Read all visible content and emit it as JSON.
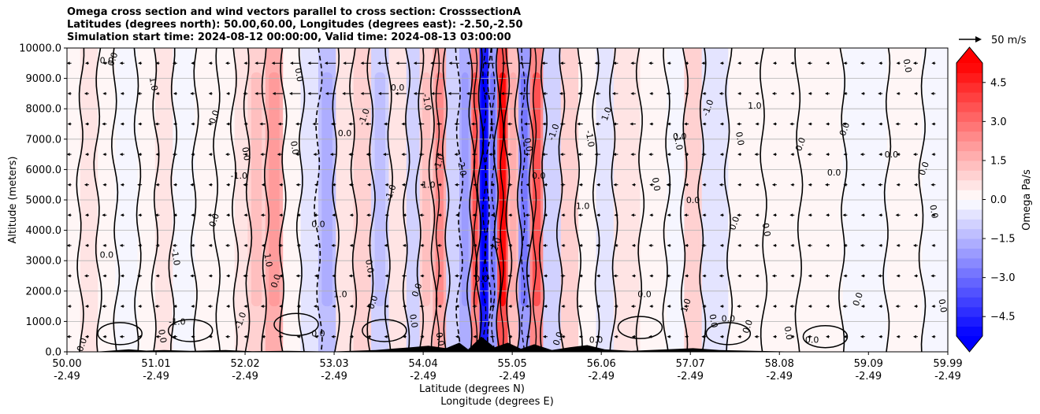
{
  "chart_data": {
    "type": "heatmap",
    "title_lines": [
      "Omega cross section and wind vectors parallel to cross section: CrosssectionA",
      "Latitudes (degrees north): 50.00,60.00, Longitudes (degrees east): -2.50,-2.50",
      "Simulation start time: 2024-08-12 00:00:00, Valid time: 2024-08-13 03:00:00"
    ],
    "ylabel": "Altitude (meters)",
    "xlabel_lines": [
      "Latitude (degrees N)",
      "Longitude (degrees E)"
    ],
    "ylim": [
      0,
      10000
    ],
    "xlim": [
      50.0,
      59.99
    ],
    "y_ticks": [
      0,
      1000,
      2000,
      3000,
      4000,
      5000,
      6000,
      7000,
      8000,
      9000,
      10000
    ],
    "y_tick_labels": [
      "0.0",
      "1000.0",
      "2000.0",
      "3000.0",
      "4000.0",
      "5000.0",
      "6000.0",
      "7000.0",
      "8000.0",
      "9000.0",
      "10000.0"
    ],
    "x_ticks": [
      50.0,
      51.01,
      52.02,
      53.03,
      54.04,
      55.05,
      56.06,
      57.07,
      58.08,
      59.09,
      59.99
    ],
    "x_tick_lat_labels": [
      "50.00",
      "51.01",
      "52.02",
      "53.03",
      "54.04",
      "55.05",
      "56.06",
      "57.07",
      "58.08",
      "59.09",
      "59.99"
    ],
    "x_tick_lon_labels": [
      "-2.49",
      "-2.49",
      "-2.49",
      "-2.49",
      "-2.49",
      "-2.49",
      "-2.49",
      "-2.49",
      "-2.49",
      "-2.49",
      "-2.49"
    ],
    "grid": true,
    "colorbar": {
      "label": "Omega Pa/s",
      "range": [
        -5.25,
        5.25
      ],
      "tick_values": [
        4.5,
        3.0,
        1.5,
        0.0,
        -1.5,
        -3.0,
        -4.5
      ],
      "tick_labels": [
        "4.5",
        "3.0",
        "1.5",
        "0.0",
        "−1.5",
        "−3.0",
        "−4.5"
      ],
      "extend": "both",
      "colormap": "bwr"
    },
    "vector_key": {
      "label": "50 m/s",
      "speed": 50
    },
    "omega_bands": [
      {
        "lat": 50.0,
        "omega": 0.1
      },
      {
        "lat": 50.15,
        "omega": 0.4
      },
      {
        "lat": 50.35,
        "omega": 0.1
      },
      {
        "lat": 50.55,
        "omega": -0.2
      },
      {
        "lat": 50.8,
        "omega": 0.2
      },
      {
        "lat": 51.0,
        "omega": 0.5
      },
      {
        "lat": 51.2,
        "omega": -0.3
      },
      {
        "lat": 51.45,
        "omega": 0.3
      },
      {
        "lat": 51.7,
        "omega": 0.1
      },
      {
        "lat": 51.9,
        "omega": 0.6
      },
      {
        "lat": 52.05,
        "omega": 1.0
      },
      {
        "lat": 52.25,
        "omega": 1.5
      },
      {
        "lat": 52.45,
        "omega": 0.3
      },
      {
        "lat": 52.65,
        "omega": -0.7
      },
      {
        "lat": 52.85,
        "omega": -1.2
      },
      {
        "lat": 53.05,
        "omega": 0.4
      },
      {
        "lat": 53.25,
        "omega": 0.8
      },
      {
        "lat": 53.45,
        "omega": -1.0
      },
      {
        "lat": 53.65,
        "omega": 0.5
      },
      {
        "lat": 53.85,
        "omega": -0.8
      },
      {
        "lat": 54.0,
        "omega": 1.0
      },
      {
        "lat": 54.15,
        "omega": 1.8
      },
      {
        "lat": 54.3,
        "omega": -0.8
      },
      {
        "lat": 54.45,
        "omega": -1.5
      },
      {
        "lat": 54.58,
        "omega": 2.5
      },
      {
        "lat": 54.68,
        "omega": -4.5
      },
      {
        "lat": 54.78,
        "omega": -2.0
      },
      {
        "lat": 54.88,
        "omega": 3.5
      },
      {
        "lat": 55.0,
        "omega": 1.2
      },
      {
        "lat": 55.12,
        "omega": -2.0
      },
      {
        "lat": 55.25,
        "omega": 2.5
      },
      {
        "lat": 55.4,
        "omega": -0.8
      },
      {
        "lat": 55.6,
        "omega": 0.8
      },
      {
        "lat": 55.8,
        "omega": 0.3
      },
      {
        "lat": 56.0,
        "omega": -0.5
      },
      {
        "lat": 56.2,
        "omega": 0.4
      },
      {
        "lat": 56.5,
        "omega": 0.2
      },
      {
        "lat": 56.8,
        "omega": -0.3
      },
      {
        "lat": 57.0,
        "omega": 0.8
      },
      {
        "lat": 57.2,
        "omega": -0.6
      },
      {
        "lat": 57.5,
        "omega": 0.3
      },
      {
        "lat": 57.9,
        "omega": 0.1
      },
      {
        "lat": 58.3,
        "omega": 0.2
      },
      {
        "lat": 58.8,
        "omega": -0.1
      },
      {
        "lat": 59.3,
        "omega": 0.1
      },
      {
        "lat": 59.7,
        "omega": -0.1
      }
    ],
    "contour_labels": [
      {
        "lat": 50.55,
        "alt": 9600,
        "text": "0.0"
      },
      {
        "lat": 50.95,
        "alt": 8800,
        "text": "1.0"
      },
      {
        "lat": 50.45,
        "alt": 9500,
        "text": "0.0"
      },
      {
        "lat": 51.7,
        "alt": 7700,
        "text": "0.0"
      },
      {
        "lat": 52.0,
        "alt": 6500,
        "text": "0.0"
      },
      {
        "lat": 51.95,
        "alt": 5700,
        "text": "-1.0"
      },
      {
        "lat": 51.7,
        "alt": 4300,
        "text": "0.0"
      },
      {
        "lat": 51.2,
        "alt": 3100,
        "text": "-1.0"
      },
      {
        "lat": 50.45,
        "alt": 3100,
        "text": "0.0"
      },
      {
        "lat": 52.4,
        "alt": 2300,
        "text": "0.0"
      },
      {
        "lat": 52.25,
        "alt": 3000,
        "text": "1.0"
      },
      {
        "lat": 51.25,
        "alt": 900,
        "text": "-1.0"
      },
      {
        "lat": 52.0,
        "alt": 1000,
        "text": "-1.0"
      },
      {
        "lat": 52.6,
        "alt": 9100,
        "text": "0.0"
      },
      {
        "lat": 53.15,
        "alt": 7100,
        "text": "0.0"
      },
      {
        "lat": 53.4,
        "alt": 7700,
        "text": "-1.0"
      },
      {
        "lat": 52.55,
        "alt": 6700,
        "text": "0.0"
      },
      {
        "lat": 52.85,
        "alt": 4100,
        "text": "0.0"
      },
      {
        "lat": 53.7,
        "alt": 5200,
        "text": "-1.0"
      },
      {
        "lat": 53.4,
        "alt": 2800,
        "text": "0.0"
      },
      {
        "lat": 53.1,
        "alt": 1800,
        "text": "1.0"
      },
      {
        "lat": 53.5,
        "alt": 1600,
        "text": "0.0"
      },
      {
        "lat": 54.05,
        "alt": 8200,
        "text": "-1.0"
      },
      {
        "lat": 53.75,
        "alt": 8600,
        "text": "0.0"
      },
      {
        "lat": 54.25,
        "alt": 6200,
        "text": "-1.0"
      },
      {
        "lat": 54.45,
        "alt": 6000,
        "text": "2.0"
      },
      {
        "lat": 54.1,
        "alt": 5400,
        "text": "1.0"
      },
      {
        "lat": 54.0,
        "alt": 2000,
        "text": "0.0"
      },
      {
        "lat": 53.9,
        "alt": 1000,
        "text": "0.0"
      },
      {
        "lat": 54.7,
        "alt": 2300,
        "text": "0.0"
      },
      {
        "lat": 54.9,
        "alt": 3500,
        "text": "2.0"
      },
      {
        "lat": 55.2,
        "alt": 6800,
        "text": "0.0"
      },
      {
        "lat": 55.35,
        "alt": 5700,
        "text": "0.0"
      },
      {
        "lat": 55.55,
        "alt": 7200,
        "text": "-1.0"
      },
      {
        "lat": 55.9,
        "alt": 7000,
        "text": "-1.0"
      },
      {
        "lat": 55.85,
        "alt": 4700,
        "text": "1.0"
      },
      {
        "lat": 56.15,
        "alt": 7800,
        "text": "1.0"
      },
      {
        "lat": 56.9,
        "alt": 6900,
        "text": "-1.0"
      },
      {
        "lat": 56.95,
        "alt": 7000,
        "text": "0.0"
      },
      {
        "lat": 57.3,
        "alt": 8000,
        "text": "-1.0"
      },
      {
        "lat": 57.6,
        "alt": 7000,
        "text": "0.0"
      },
      {
        "lat": 57.8,
        "alt": 8000,
        "text": "1.0"
      },
      {
        "lat": 58.85,
        "alt": 7300,
        "text": "0.0"
      },
      {
        "lat": 59.5,
        "alt": 9400,
        "text": "0.0"
      },
      {
        "lat": 59.35,
        "alt": 6400,
        "text": "0.0"
      },
      {
        "lat": 59.75,
        "alt": 6000,
        "text": "0.0"
      },
      {
        "lat": 59.8,
        "alt": 4600,
        "text": "0.0"
      },
      {
        "lat": 58.7,
        "alt": 5800,
        "text": "0.0"
      },
      {
        "lat": 58.35,
        "alt": 6800,
        "text": "0.0"
      },
      {
        "lat": 56.65,
        "alt": 5500,
        "text": "0.0"
      },
      {
        "lat": 57.1,
        "alt": 4900,
        "text": "0.0"
      },
      {
        "lat": 57.6,
        "alt": 4200,
        "text": "0.0"
      },
      {
        "lat": 57.9,
        "alt": 4000,
        "text": "0.0"
      },
      {
        "lat": 56.55,
        "alt": 1800,
        "text": "0.0"
      },
      {
        "lat": 57.05,
        "alt": 1500,
        "text": "1.0"
      },
      {
        "lat": 57.3,
        "alt": 1000,
        "text": "0.0"
      },
      {
        "lat": 57.5,
        "alt": 1000,
        "text": "0.0"
      },
      {
        "lat": 57.75,
        "alt": 800,
        "text": "0.0"
      },
      {
        "lat": 58.15,
        "alt": 600,
        "text": "0.0"
      },
      {
        "lat": 58.45,
        "alt": 300,
        "text": "0.0"
      },
      {
        "lat": 59.0,
        "alt": 1700,
        "text": "0.0"
      },
      {
        "lat": 59.9,
        "alt": 1500,
        "text": "0.0"
      },
      {
        "lat": 56.0,
        "alt": 300,
        "text": "0.0"
      },
      {
        "lat": 55.6,
        "alt": 400,
        "text": "0.0"
      },
      {
        "lat": 54.2,
        "alt": 400,
        "text": "0.0"
      },
      {
        "lat": 52.85,
        "alt": 500,
        "text": "0.0"
      },
      {
        "lat": 50.2,
        "alt": 200,
        "text": "0.0"
      },
      {
        "lat": 51.05,
        "alt": 500,
        "text": "0.0"
      }
    ]
  }
}
